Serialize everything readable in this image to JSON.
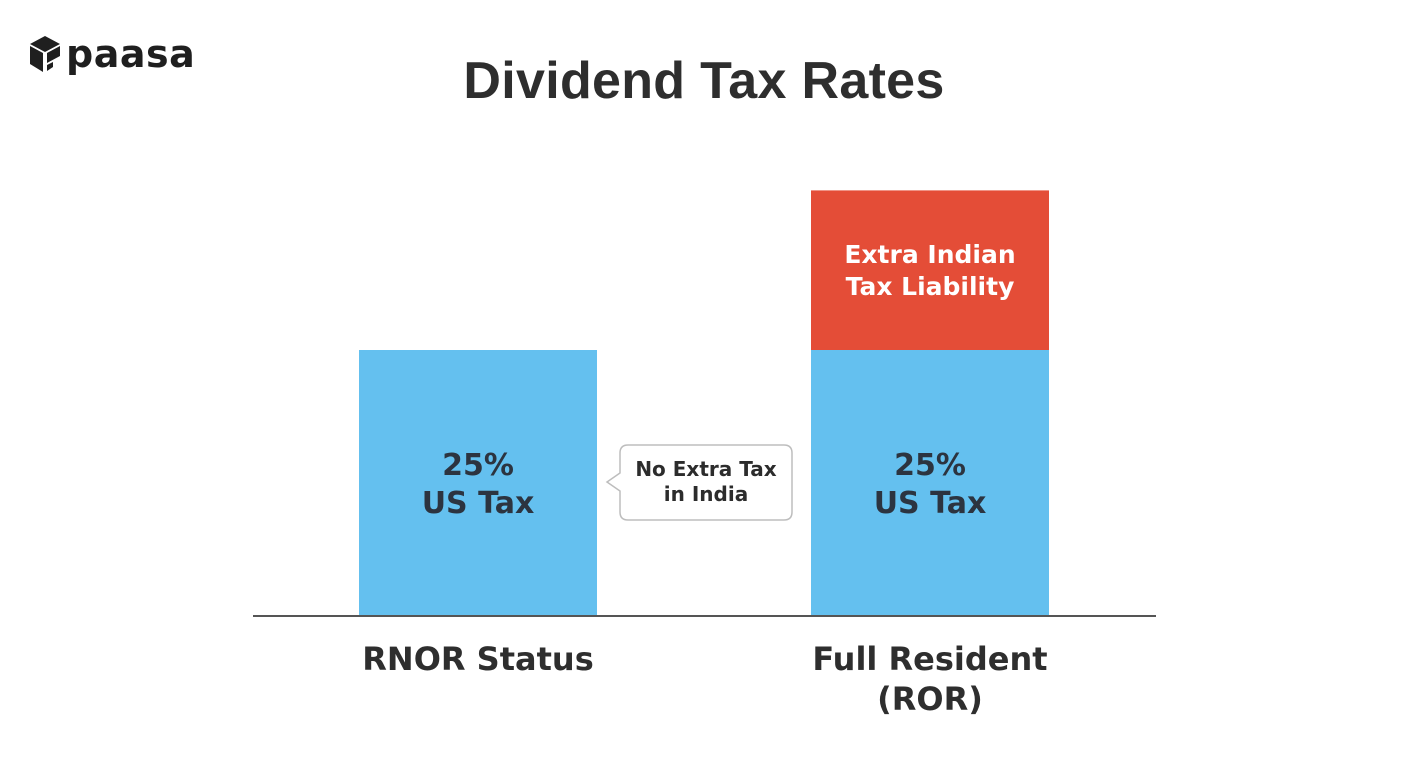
{
  "logo": {
    "text": "paasa",
    "icon": "paasa-box-icon"
  },
  "chart_data": {
    "type": "bar",
    "title": "Dividend Tax Rates",
    "categories": [
      "RNOR Status",
      "Full Resident (ROR)"
    ],
    "category_lines": [
      [
        "RNOR Status"
      ],
      [
        "Full Resident",
        "(ROR)"
      ]
    ],
    "series": [
      {
        "name": "US Tax",
        "color": "#64c0ef",
        "values": [
          25,
          25
        ],
        "labels": [
          [
            "25%",
            "US Tax"
          ],
          [
            "25%",
            "US Tax"
          ]
        ]
      },
      {
        "name": "Extra Indian Tax Liability",
        "color": "#e44d37",
        "values": [
          0,
          15
        ],
        "labels": [
          null,
          [
            "Extra Indian",
            "Tax Liability"
          ]
        ]
      }
    ],
    "annotations": [
      {
        "category": "RNOR Status",
        "lines": [
          "No Extra Tax",
          "in India"
        ]
      }
    ],
    "xlabel": "",
    "ylabel": "",
    "ylim": [
      0,
      40
    ],
    "grid": false,
    "legend": "none"
  }
}
